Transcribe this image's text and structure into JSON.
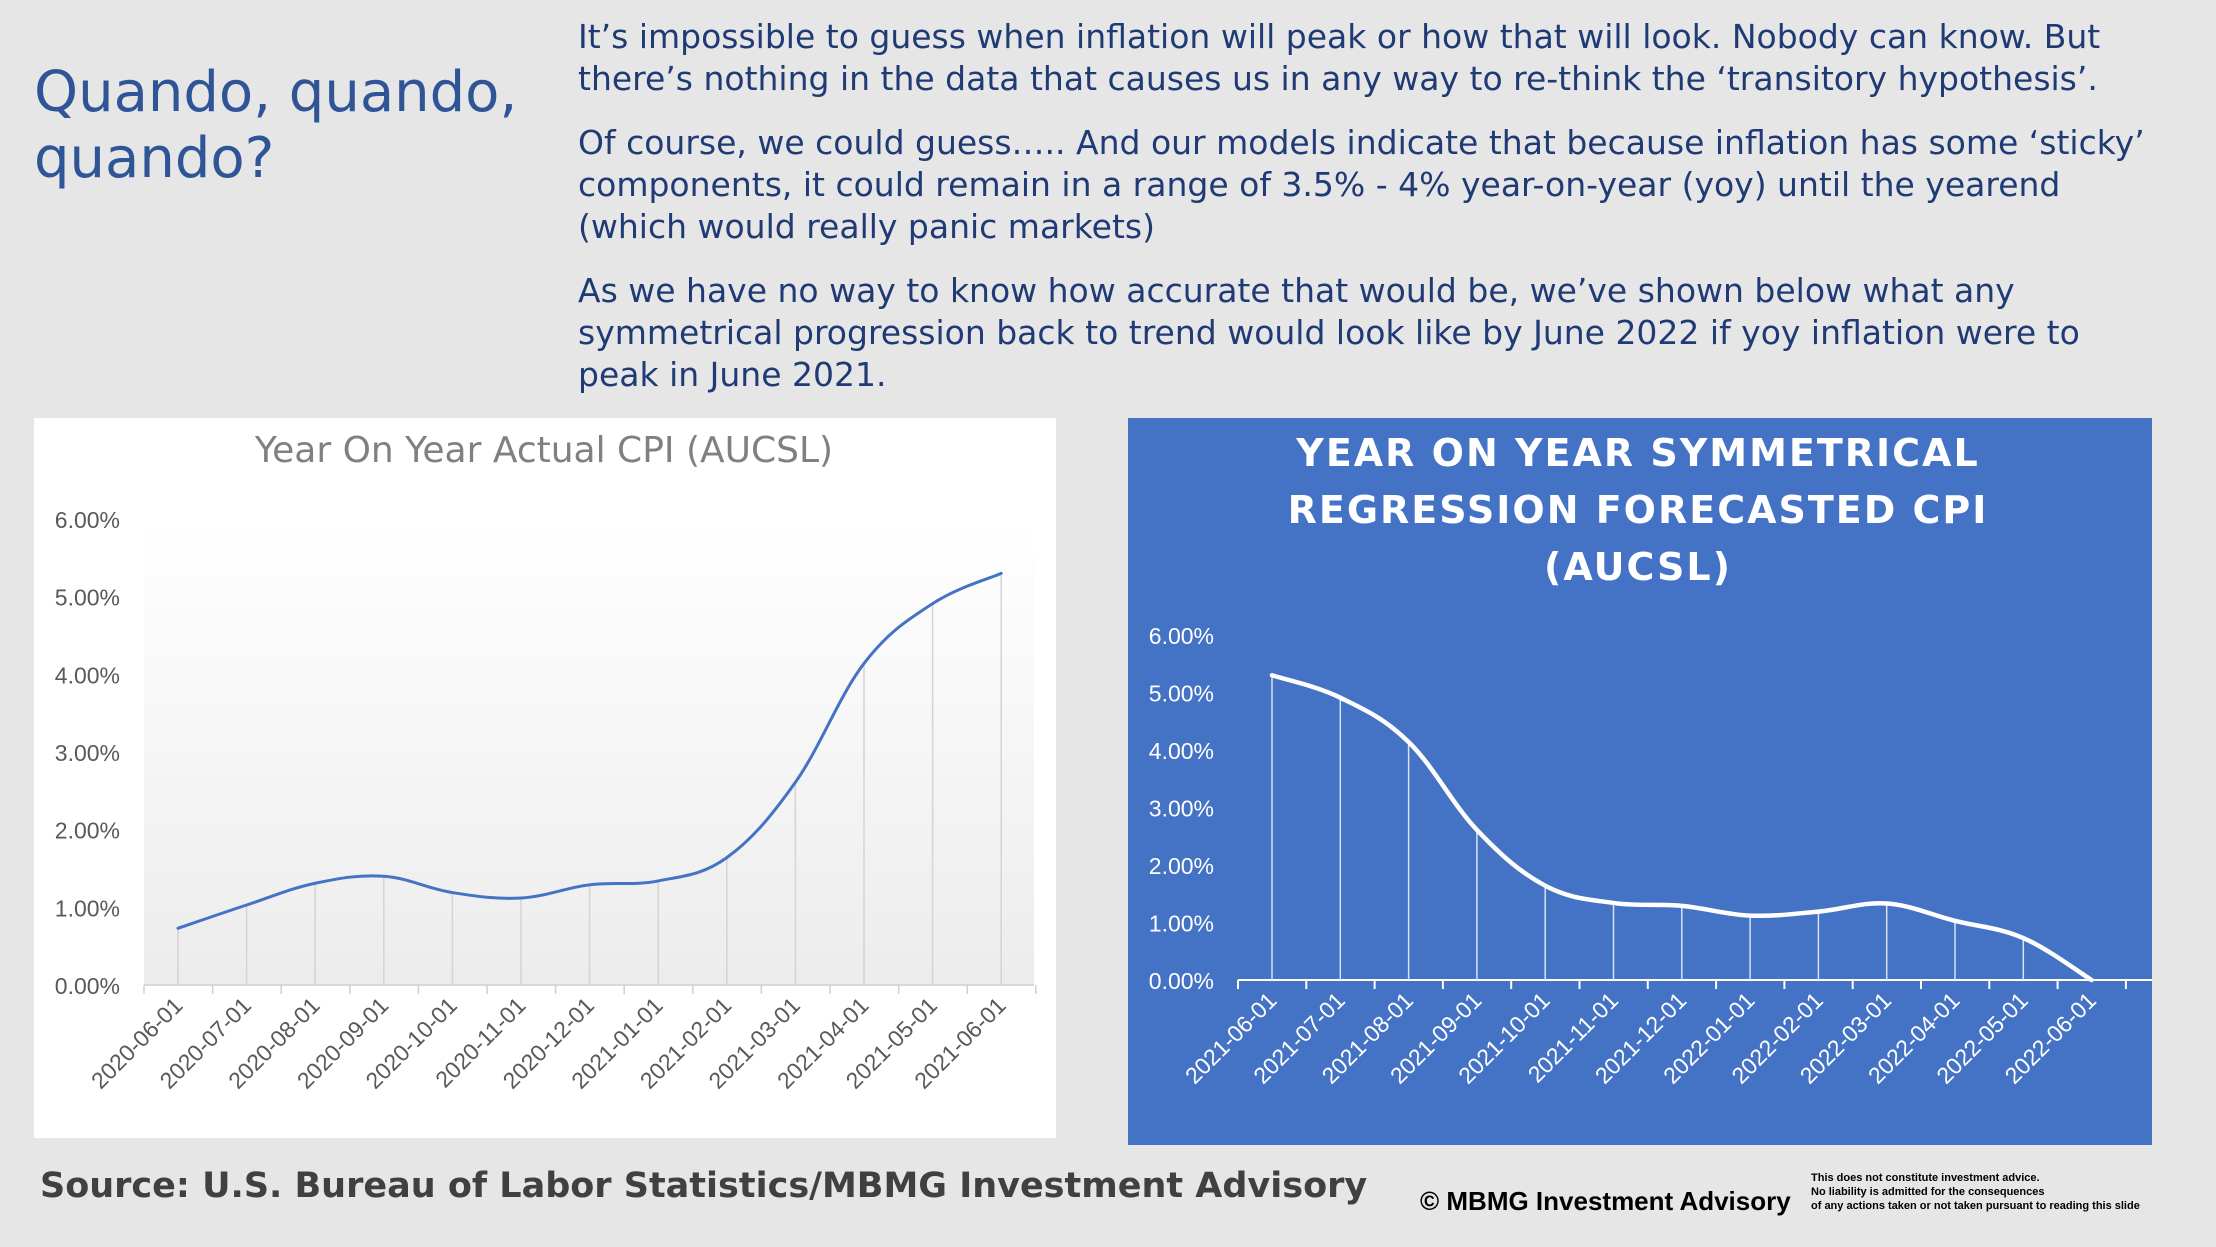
{
  "slide": {
    "title": "Quando, quando, quando?",
    "paragraphs": [
      "It’s impossible to guess when inflation will peak or how that will look. Nobody can know. But there’s nothing in the data that causes us in any way to re-think the ‘transitory hypothesis’.",
      "Of course, we could guess….. And our models indicate that because inflation has some ‘sticky’ components, it could remain in a range of 3.5% - 4% year-on-year (yoy) until the yearend (which would really panic markets)",
      "As we have no way to know how accurate that would be, we’ve shown below what any symmetrical progression back to trend would look like by June 2022 if yoy inflation were to peak in June 2021."
    ],
    "source": "Source: U.S. Bureau of Labor Statistics/MBMG Investment Advisory",
    "copyright": "© MBMG Investment Advisory",
    "disclaimer": [
      "This does not constitute investment advice.",
      "No liability is admitted for the consequences",
      "of any actions taken or not taken pursuant to reading this slide"
    ]
  },
  "chart_data": [
    {
      "type": "line",
      "title": "Year On Year Actual CPI (AUCSL)",
      "categories": [
        "2020-06-01",
        "2020-07-01",
        "2020-08-01",
        "2020-09-01",
        "2020-10-01",
        "2020-11-01",
        "2020-12-01",
        "2021-01-01",
        "2021-02-01",
        "2021-03-01",
        "2021-04-01",
        "2021-05-01",
        "2021-06-01"
      ],
      "values": [
        0.73,
        1.03,
        1.31,
        1.4,
        1.19,
        1.12,
        1.29,
        1.34,
        1.64,
        2.61,
        4.14,
        4.91,
        5.3
      ],
      "yticks": [
        "0.00%",
        "1.00%",
        "2.00%",
        "3.00%",
        "4.00%",
        "5.00%",
        "6.00%"
      ],
      "ylim": [
        0,
        6
      ],
      "background": "#ffffff",
      "line_color": "#4472c4",
      "text_color": "#595959",
      "drop_lines": true
    },
    {
      "type": "line",
      "title": "YEAR ON YEAR SYMMETRICAL REGRESSION FORECASTED CPI (AUCSL)",
      "title_lines": [
        "YEAR ON YEAR SYMMETRICAL",
        "REGRESSION FORECASTED CPI",
        "(AUCSL)"
      ],
      "categories": [
        "2021-06-01",
        "2021-07-01",
        "2021-08-01",
        "2021-09-01",
        "2021-10-01",
        "2021-11-01",
        "2021-12-01",
        "2022-01-01",
        "2022-02-01",
        "2022-03-01",
        "2022-04-01",
        "2022-05-01",
        "2022-06-01"
      ],
      "values": [
        5.3,
        4.91,
        4.14,
        2.61,
        1.64,
        1.34,
        1.29,
        1.12,
        1.19,
        1.33,
        1.03,
        0.73,
        0.0
      ],
      "yticks": [
        "0.00%",
        "1.00%",
        "2.00%",
        "3.00%",
        "4.00%",
        "5.00%",
        "6.00%"
      ],
      "ylim": [
        0,
        6
      ],
      "background": "#4472c4",
      "line_color": "#ffffff",
      "text_color": "#ffffff",
      "drop_lines": true
    }
  ]
}
